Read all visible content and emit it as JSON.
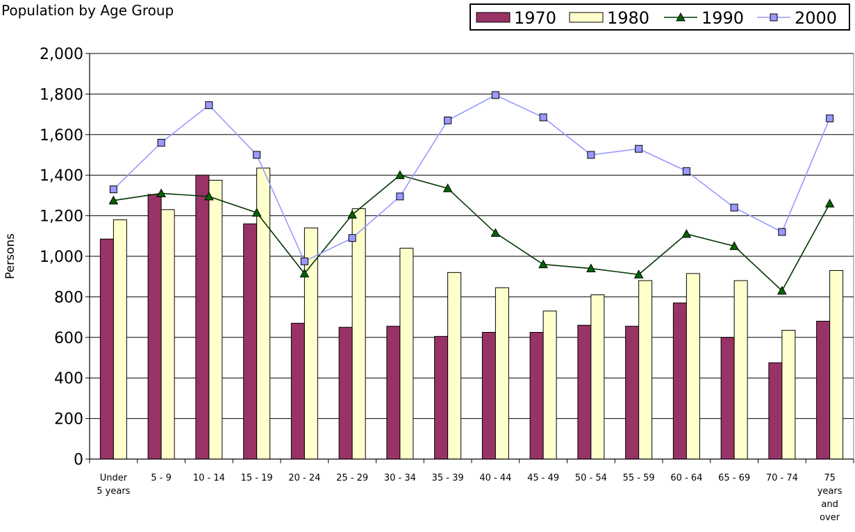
{
  "chart_data": {
    "type": "bar",
    "title": "Population by Age Group",
    "ylabel": "Persons",
    "xlabel": "",
    "ylim": [
      0,
      2000
    ],
    "yticks": [
      0,
      200,
      400,
      600,
      800,
      1000,
      1200,
      1400,
      1600,
      1800,
      2000
    ],
    "ytick_labels": [
      "0",
      "200",
      "400",
      "600",
      "800",
      "1,000",
      "1,200",
      "1,400",
      "1,600",
      "1,800",
      "2,000"
    ],
    "grid": true,
    "legend_position": "top-right",
    "categories": [
      "Under 5 years",
      "5 - 9",
      "10 - 14",
      "15 - 19",
      "20 - 24",
      "25 - 29",
      "30 - 34",
      "35 - 39",
      "40 - 44",
      "45 - 49",
      "50 - 54",
      "55 - 59",
      "60 - 64",
      "65 - 69",
      "70 - 74",
      "75 years and over"
    ],
    "category_label_lines": [
      [
        "Under",
        "5 years"
      ],
      [
        "5 - 9"
      ],
      [
        "10 - 14"
      ],
      [
        "15 - 19"
      ],
      [
        "20 - 24"
      ],
      [
        "25 - 29"
      ],
      [
        "30 - 34"
      ],
      [
        "35 - 39"
      ],
      [
        "40 - 44"
      ],
      [
        "45 - 49"
      ],
      [
        "50 - 54"
      ],
      [
        "55 - 59"
      ],
      [
        "60 - 64"
      ],
      [
        "65 - 69"
      ],
      [
        "70 - 74"
      ],
      [
        "75",
        "years",
        "and",
        "over"
      ]
    ],
    "series": [
      {
        "name": "1970",
        "kind": "bar",
        "color": "#993366",
        "values": [
          1085,
          1305,
          1400,
          1160,
          670,
          650,
          655,
          605,
          625,
          625,
          660,
          655,
          770,
          600,
          475,
          680
        ]
      },
      {
        "name": "1980",
        "kind": "bar",
        "color": "#ffffcc",
        "values": [
          1180,
          1230,
          1375,
          1435,
          1140,
          1235,
          1040,
          920,
          845,
          730,
          810,
          880,
          915,
          880,
          635,
          930
        ]
      },
      {
        "name": "1990",
        "kind": "line",
        "marker": "triangle",
        "color": "#003300",
        "marker_color": "#006600",
        "values": [
          1275,
          1310,
          1295,
          1215,
          915,
          1205,
          1400,
          1335,
          1115,
          960,
          940,
          910,
          1110,
          1050,
          830,
          1260
        ]
      },
      {
        "name": "2000",
        "kind": "line",
        "marker": "square",
        "color": "#9999ff",
        "marker_color": "#9999ff",
        "values": [
          1330,
          1560,
          1745,
          1500,
          975,
          1090,
          1295,
          1670,
          1795,
          1685,
          1500,
          1530,
          1420,
          1240,
          1120,
          1680
        ]
      }
    ]
  }
}
